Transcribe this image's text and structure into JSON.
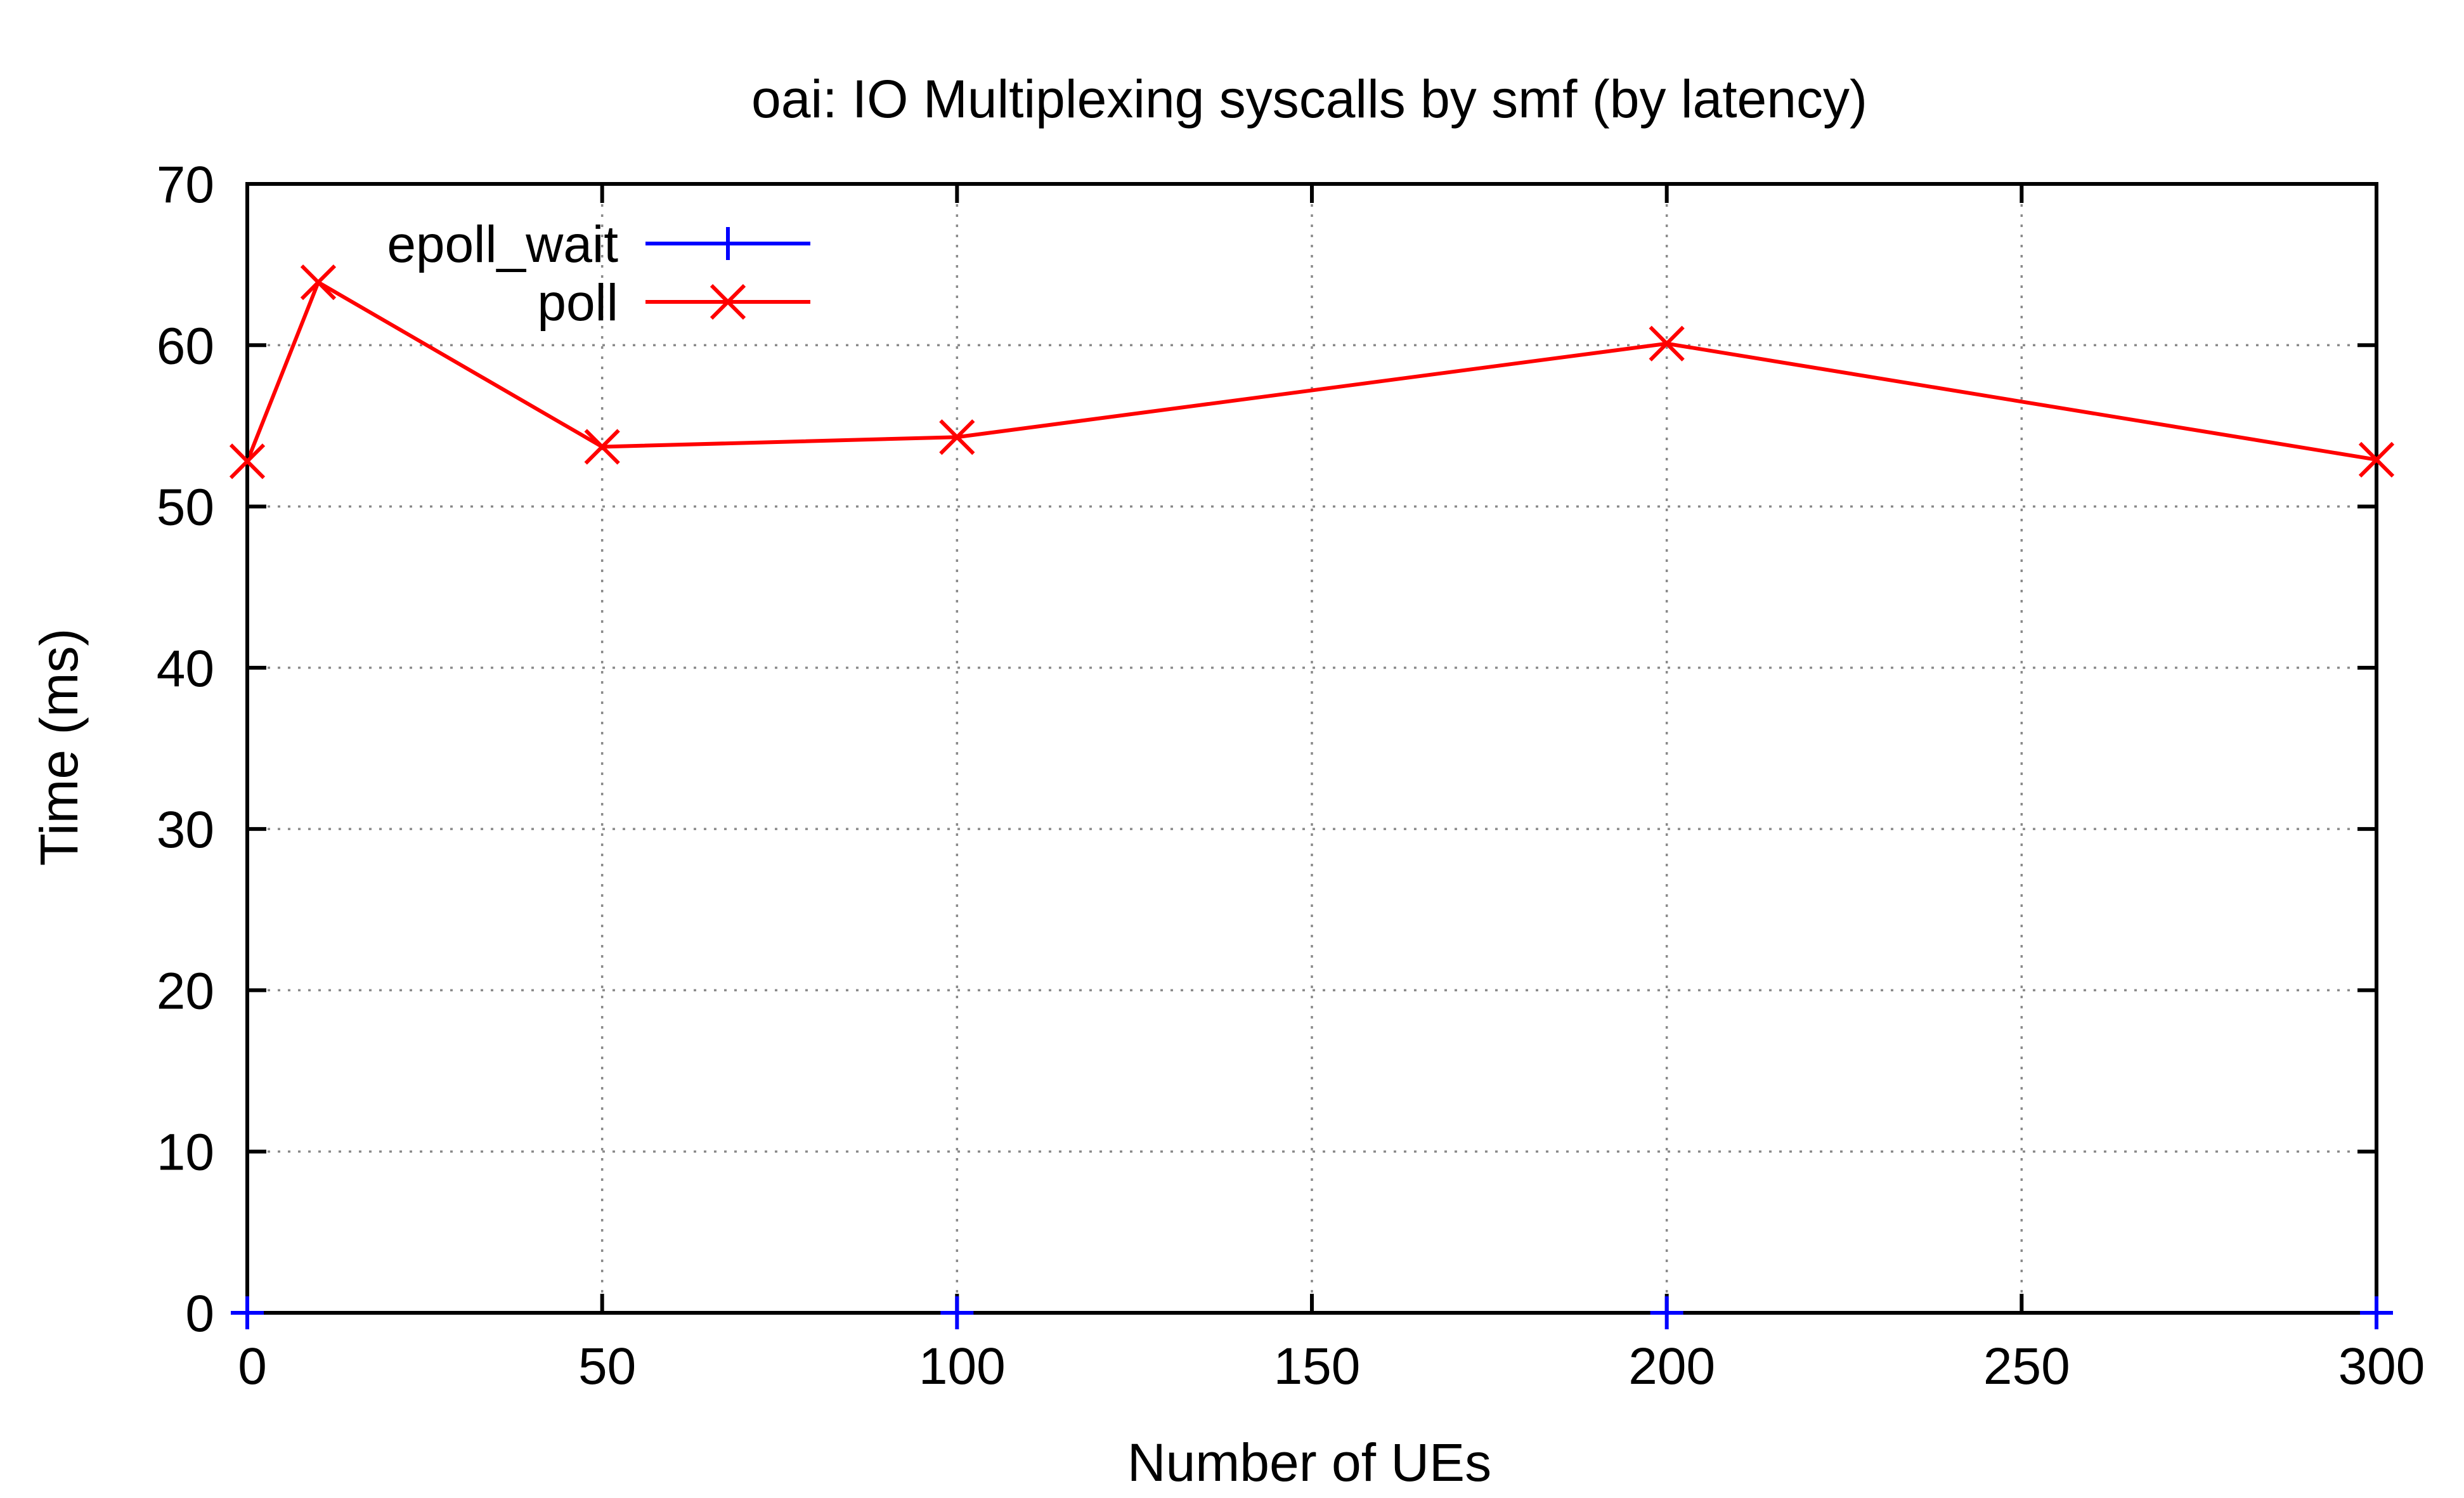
{
  "chart_data": {
    "type": "line",
    "title": "oai: IO Multiplexing syscalls by smf (by latency)",
    "xlabel": "Number of UEs",
    "ylabel": "Time (ms)",
    "xlim": [
      0,
      300
    ],
    "ylim": [
      0,
      70
    ],
    "x_ticks": [
      0,
      50,
      100,
      150,
      200,
      250,
      300
    ],
    "y_ticks": [
      0,
      10,
      20,
      30,
      40,
      50,
      60,
      70
    ],
    "x_tick_labels": [
      "0",
      "50",
      "100",
      "150",
      "200",
      "250",
      "300"
    ],
    "y_tick_labels": [
      "0",
      "10",
      "20",
      "30",
      "40",
      "50",
      "60",
      "70"
    ],
    "grid": true,
    "legend_position": "top-left",
    "series": [
      {
        "name": "epoll_wait",
        "color": "#0000ff",
        "marker": "plus",
        "x": [
          0,
          100,
          200,
          300
        ],
        "y": [
          0,
          0,
          0,
          0
        ]
      },
      {
        "name": "poll",
        "color": "#ff0000",
        "marker": "cross",
        "x": [
          0,
          10,
          50,
          100,
          200,
          300
        ],
        "y": [
          52.8,
          63.9,
          53.7,
          54.3,
          60.1,
          52.9
        ]
      }
    ]
  }
}
